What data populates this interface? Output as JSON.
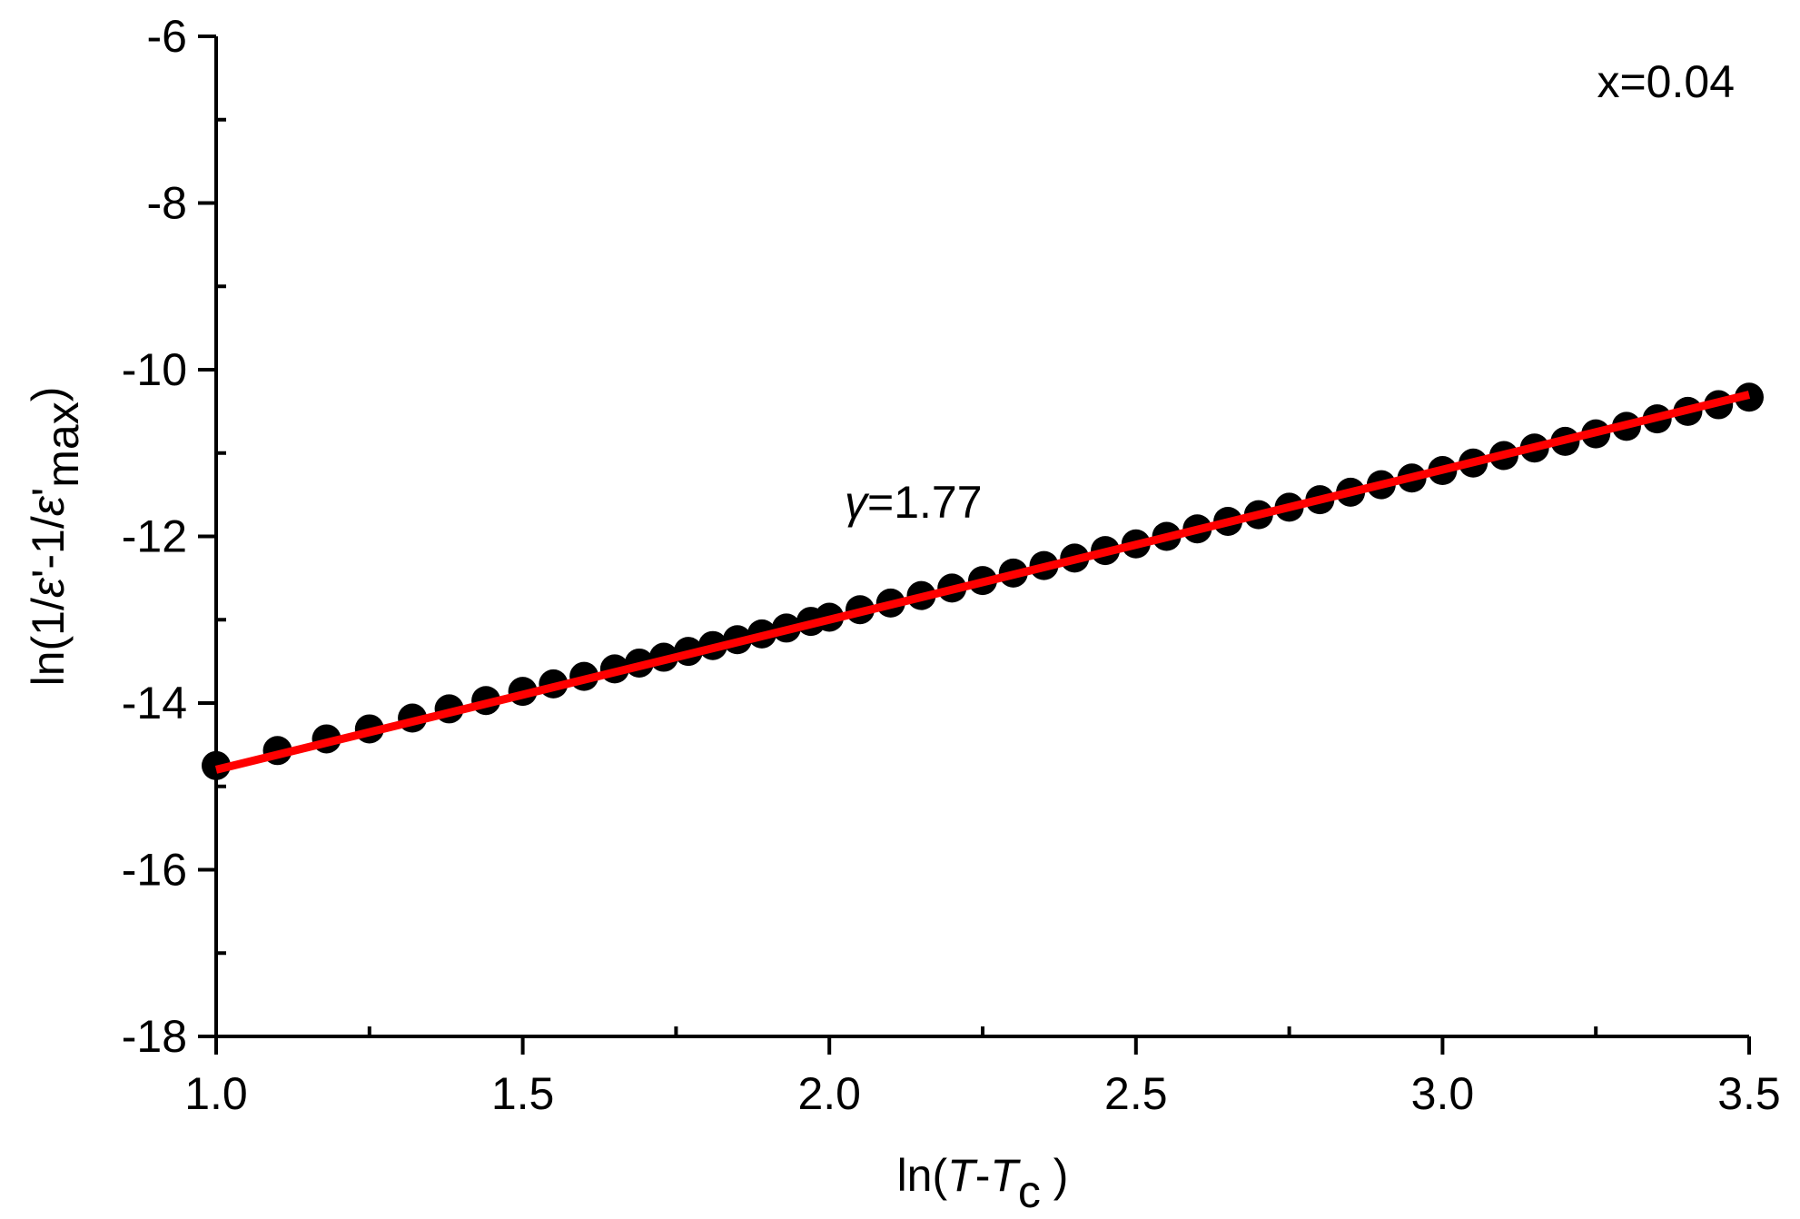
{
  "chart_data": {
    "type": "scatter",
    "x_label": [
      "ln(",
      "T",
      "-",
      "T",
      "c",
      " )"
    ],
    "y_label": [
      "ln(1/",
      "ε",
      "'-1/",
      "ε",
      "'",
      "max",
      ")"
    ],
    "annotations": [
      [
        "x=0.04"
      ],
      [
        "γ",
        "=1.77"
      ]
    ],
    "xlim": [
      1.0,
      3.5
    ],
    "ylim": [
      -18,
      -6
    ],
    "xticks": [
      {
        "value": 1.0,
        "label": "1.0"
      },
      1.5,
      {
        "value": 2.0,
        "label": "2.0"
      },
      2.5,
      {
        "value": 3.0,
        "label": "3.0"
      },
      3.5
    ],
    "yticks": [
      -6,
      -8,
      -10,
      -12,
      -14,
      -16,
      -18
    ],
    "series": [
      {
        "color": "#000000",
        "x": [
          1.0,
          1.1,
          1.18,
          1.25,
          1.32,
          1.38,
          1.44,
          1.5,
          1.55,
          1.6,
          1.65,
          1.69,
          1.73,
          1.77,
          1.81,
          1.85,
          1.89,
          1.93,
          1.97,
          2.0,
          2.05,
          2.1,
          2.15,
          2.2,
          2.25,
          2.3,
          2.35,
          2.4,
          2.45,
          2.5,
          2.55,
          2.6,
          2.65,
          2.7,
          2.75,
          2.8,
          2.85,
          2.9,
          2.95,
          3.0,
          3.05,
          3.1,
          3.15,
          3.2,
          3.25,
          3.3,
          3.35,
          3.4,
          3.45,
          3.5
        ],
        "values": [
          -14.75,
          -14.57,
          -14.43,
          -14.31,
          -14.18,
          -14.07,
          -13.97,
          -13.86,
          -13.77,
          -13.68,
          -13.59,
          -13.52,
          -13.45,
          -13.38,
          -13.31,
          -13.24,
          -13.17,
          -13.1,
          -13.02,
          -12.97,
          -12.88,
          -12.8,
          -12.71,
          -12.62,
          -12.53,
          -12.44,
          -12.35,
          -12.26,
          -12.17,
          -12.09,
          -12.0,
          -11.91,
          -11.82,
          -11.74,
          -11.65,
          -11.56,
          -11.47,
          -11.38,
          -11.3,
          -11.21,
          -11.12,
          -11.03,
          -10.94,
          -10.86,
          -10.77,
          -10.68,
          -10.59,
          -10.5,
          -10.42,
          -10.33
        ]
      }
    ],
    "fit": {
      "color": "#ff0000",
      "x": [
        1.0,
        3.5
      ],
      "values": [
        -14.8,
        -10.3
      ]
    }
  }
}
